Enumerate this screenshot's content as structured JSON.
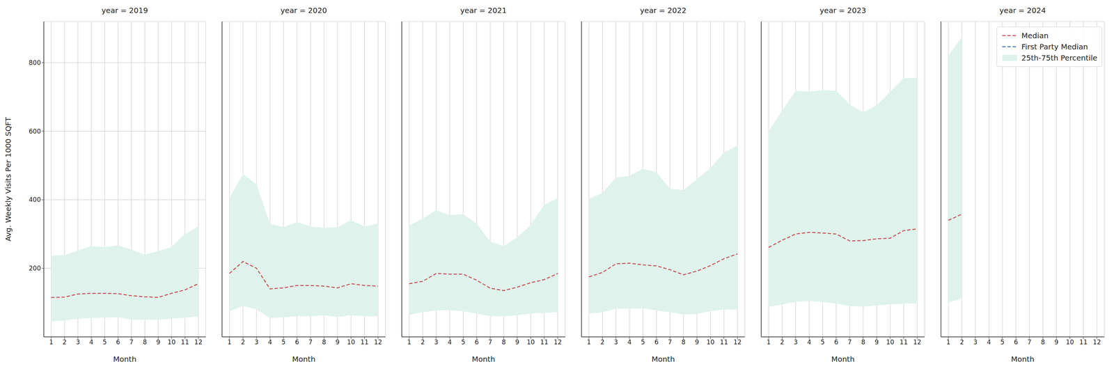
{
  "chart_data": [
    {
      "type": "line",
      "title": "year = 2019",
      "x_label": "Month",
      "y_label": "Avg. Weekly Visits Per 1000 SQFT",
      "x": [
        1,
        2,
        3,
        4,
        5,
        6,
        7,
        8,
        9,
        10,
        11,
        12
      ],
      "series": [
        {
          "name": "Median",
          "color": "#c44e52",
          "line_style": "dashed",
          "values": [
            115,
            116,
            125,
            127,
            127,
            126,
            120,
            117,
            115,
            127,
            137,
            155
          ]
        },
        {
          "name": "First Party Median",
          "color": "#4c72b0",
          "line_style": "dashed",
          "values": [
            null,
            null,
            null,
            null,
            null,
            null,
            null,
            null,
            null,
            null,
            null,
            null
          ]
        }
      ],
      "band": {
        "name": "25th-75th Percentile",
        "color": "#dff2ec",
        "low": [
          45,
          48,
          53,
          55,
          56,
          57,
          50,
          50,
          50,
          53,
          56,
          60
        ],
        "high": [
          237,
          238,
          252,
          265,
          262,
          267,
          255,
          240,
          250,
          262,
          300,
          322
        ]
      },
      "xlim": [
        0.45,
        12.55
      ],
      "xticks": [
        1,
        2,
        3,
        4,
        5,
        6,
        7,
        8,
        9,
        10,
        11,
        12
      ],
      "ylim": [
        0,
        920
      ],
      "yticks": [
        200,
        400,
        600,
        800
      ],
      "grid": true
    },
    {
      "type": "line",
      "title": "year = 2020",
      "x_label": "Month",
      "x": [
        1,
        2,
        3,
        4,
        5,
        6,
        7,
        8,
        9,
        10,
        11,
        12
      ],
      "series": [
        {
          "name": "Median",
          "color": "#c44e52",
          "line_style": "dashed",
          "values": [
            185,
            220,
            200,
            140,
            143,
            150,
            150,
            148,
            143,
            155,
            150,
            148
          ]
        },
        {
          "name": "First Party Median",
          "color": "#4c72b0",
          "line_style": "dashed",
          "values": [
            null,
            null,
            null,
            null,
            null,
            null,
            null,
            null,
            null,
            null,
            null,
            null
          ]
        }
      ],
      "band": {
        "name": "25th-75th Percentile",
        "color": "#dff2ec",
        "low": [
          75,
          90,
          80,
          55,
          57,
          60,
          60,
          63,
          58,
          63,
          60,
          60
        ],
        "high": [
          405,
          475,
          445,
          330,
          320,
          335,
          322,
          318,
          320,
          340,
          322,
          330
        ]
      },
      "xlim": [
        0.45,
        12.55
      ],
      "xticks": [
        1,
        2,
        3,
        4,
        5,
        6,
        7,
        8,
        9,
        10,
        11,
        12
      ],
      "ylim": [
        0,
        920
      ],
      "yticks": [
        200,
        400,
        600,
        800
      ],
      "grid": true,
      "tick_labels": "x"
    },
    {
      "type": "line",
      "title": "year = 2021",
      "x_label": "Month",
      "x": [
        1,
        2,
        3,
        4,
        5,
        6,
        7,
        8,
        9,
        10,
        11,
        12
      ],
      "series": [
        {
          "name": "Median",
          "color": "#c44e52",
          "line_style": "dashed",
          "values": [
            155,
            162,
            185,
            183,
            183,
            165,
            142,
            135,
            145,
            158,
            167,
            185
          ]
        },
        {
          "name": "First Party Median",
          "color": "#4c72b0",
          "line_style": "dashed",
          "values": [
            null,
            null,
            null,
            null,
            null,
            null,
            null,
            null,
            null,
            null,
            null,
            null
          ]
        }
      ],
      "band": {
        "name": "25th-75th Percentile",
        "color": "#dff2ec",
        "low": [
          65,
          72,
          77,
          78,
          75,
          68,
          60,
          60,
          63,
          68,
          70,
          72
        ],
        "high": [
          325,
          345,
          370,
          355,
          358,
          330,
          278,
          265,
          290,
          327,
          385,
          405
        ]
      },
      "xlim": [
        0.45,
        12.55
      ],
      "xticks": [
        1,
        2,
        3,
        4,
        5,
        6,
        7,
        8,
        9,
        10,
        11,
        12
      ],
      "ylim": [
        0,
        920
      ],
      "yticks": [
        200,
        400,
        600,
        800
      ],
      "grid": true,
      "tick_labels": "x"
    },
    {
      "type": "line",
      "title": "year = 2022",
      "x_label": "Month",
      "x": [
        1,
        2,
        3,
        4,
        5,
        6,
        7,
        8,
        9,
        10,
        11,
        12
      ],
      "series": [
        {
          "name": "Median",
          "color": "#c44e52",
          "line_style": "dashed",
          "values": [
            175,
            188,
            213,
            215,
            210,
            207,
            196,
            181,
            192,
            208,
            228,
            242
          ]
        },
        {
          "name": "First Party Median",
          "color": "#4c72b0",
          "line_style": "dashed",
          "values": [
            null,
            null,
            null,
            null,
            null,
            null,
            null,
            null,
            null,
            null,
            null,
            null
          ]
        }
      ],
      "band": {
        "name": "25th-75th Percentile",
        "color": "#dff2ec",
        "low": [
          68,
          72,
          82,
          82,
          83,
          77,
          72,
          65,
          67,
          75,
          80,
          80
        ],
        "high": [
          402,
          420,
          465,
          470,
          490,
          480,
          432,
          428,
          460,
          493,
          538,
          558
        ]
      },
      "xlim": [
        0.45,
        12.55
      ],
      "xticks": [
        1,
        2,
        3,
        4,
        5,
        6,
        7,
        8,
        9,
        10,
        11,
        12
      ],
      "ylim": [
        0,
        920
      ],
      "yticks": [
        200,
        400,
        600,
        800
      ],
      "grid": true,
      "tick_labels": "x"
    },
    {
      "type": "line",
      "title": "year = 2023",
      "x_label": "Month",
      "x": [
        1,
        2,
        3,
        4,
        5,
        6,
        7,
        8,
        9,
        10,
        11,
        12
      ],
      "series": [
        {
          "name": "Median",
          "color": "#c44e52",
          "line_style": "dashed",
          "values": [
            261,
            282,
            300,
            305,
            303,
            300,
            280,
            281,
            286,
            288,
            310,
            315
          ]
        },
        {
          "name": "First Party Median",
          "color": "#4c72b0",
          "line_style": "dashed",
          "values": [
            null,
            null,
            null,
            null,
            null,
            null,
            null,
            null,
            null,
            null,
            null,
            null
          ]
        }
      ],
      "band": {
        "name": "25th-75th Percentile",
        "color": "#dff2ec",
        "low": [
          87,
          95,
          102,
          105,
          102,
          97,
          90,
          88,
          92,
          95,
          97,
          98
        ],
        "high": [
          600,
          660,
          718,
          715,
          720,
          718,
          678,
          655,
          675,
          715,
          755,
          755
        ]
      },
      "xlim": [
        0.45,
        12.55
      ],
      "xticks": [
        1,
        2,
        3,
        4,
        5,
        6,
        7,
        8,
        9,
        10,
        11,
        12
      ],
      "ylim": [
        0,
        920
      ],
      "yticks": [
        200,
        400,
        600,
        800
      ],
      "grid": true,
      "tick_labels": "x"
    },
    {
      "type": "line",
      "title": "year = 2024",
      "x_label": "Month",
      "x": [
        1,
        2,
        3,
        4,
        5,
        6,
        7,
        8,
        9,
        10,
        11,
        12
      ],
      "series": [
        {
          "name": "Median",
          "color": "#c44e52",
          "line_style": "dashed",
          "values": [
            340,
            358,
            null,
            null,
            null,
            null,
            null,
            null,
            null,
            null,
            null,
            null
          ]
        },
        {
          "name": "First Party Median",
          "color": "#4c72b0",
          "line_style": "dashed",
          "values": [
            null,
            null,
            null,
            null,
            null,
            null,
            null,
            null,
            null,
            null,
            null,
            null
          ]
        }
      ],
      "band": {
        "name": "25th-75th Percentile",
        "color": "#dff2ec",
        "low": [
          100,
          112,
          null,
          null,
          null,
          null,
          null,
          null,
          null,
          null,
          null,
          null
        ],
        "high": [
          820,
          875,
          null,
          null,
          null,
          null,
          null,
          null,
          null,
          null,
          null,
          null
        ]
      },
      "xlim": [
        0.45,
        12.55
      ],
      "xticks": [
        1,
        2,
        3,
        4,
        5,
        6,
        7,
        8,
        9,
        10,
        11,
        12
      ],
      "ylim": [
        0,
        920
      ],
      "yticks": [
        200,
        400,
        600,
        800
      ],
      "grid": true,
      "tick_labels": "x",
      "legend": "upper right"
    }
  ]
}
